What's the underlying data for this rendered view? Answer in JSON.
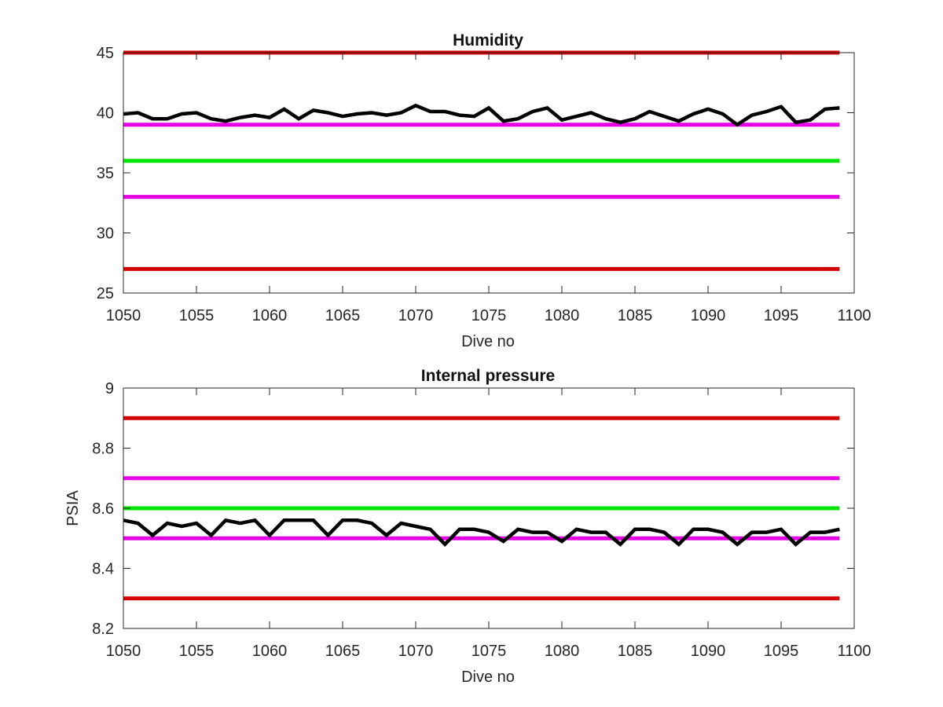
{
  "chart_data": [
    {
      "type": "line",
      "title": "Humidity",
      "xlabel": "Dive no",
      "ylabel": "",
      "xlim": [
        1050,
        1100
      ],
      "ylim": [
        25,
        45
      ],
      "xticks": [
        "1050",
        "1055",
        "1060",
        "1065",
        "1070",
        "1075",
        "1080",
        "1085",
        "1090",
        "1095",
        "1100"
      ],
      "yticks": [
        "25",
        "30",
        "35",
        "40",
        "45"
      ],
      "grid": false,
      "reference_lines": [
        {
          "y": 45,
          "color": "#d40000"
        },
        {
          "y": 39,
          "color": "#e600e6"
        },
        {
          "y": 36,
          "color": "#00e600"
        },
        {
          "y": 33,
          "color": "#e600e6"
        },
        {
          "y": 27,
          "color": "#d40000"
        }
      ],
      "series": [
        {
          "color": "#000000",
          "x": [
            1050,
            1051,
            1052,
            1053,
            1054,
            1055,
            1056,
            1057,
            1058,
            1059,
            1060,
            1061,
            1062,
            1063,
            1064,
            1065,
            1066,
            1067,
            1068,
            1069,
            1070,
            1071,
            1072,
            1073,
            1074,
            1075,
            1076,
            1077,
            1078,
            1079,
            1080,
            1081,
            1082,
            1083,
            1084,
            1085,
            1086,
            1087,
            1088,
            1089,
            1090,
            1091,
            1092,
            1093,
            1094,
            1095,
            1096,
            1097,
            1098,
            1099
          ],
          "values": [
            39.9,
            40.0,
            39.5,
            39.5,
            39.9,
            40.0,
            39.5,
            39.3,
            39.6,
            39.8,
            39.6,
            40.3,
            39.5,
            40.2,
            40.0,
            39.7,
            39.9,
            40.0,
            39.8,
            40.0,
            40.6,
            40.1,
            40.1,
            39.8,
            39.7,
            40.4,
            39.3,
            39.5,
            40.1,
            40.4,
            39.4,
            39.7,
            40.0,
            39.5,
            39.2,
            39.5,
            40.1,
            39.7,
            39.3,
            39.9,
            40.3,
            39.9,
            39.0,
            39.8,
            40.1,
            40.5,
            39.2,
            39.4,
            40.3,
            40.4
          ]
        }
      ]
    },
    {
      "type": "line",
      "title": "Internal pressure",
      "xlabel": "Dive no",
      "ylabel": "PSIA",
      "xlim": [
        1050,
        1100
      ],
      "ylim": [
        8.2,
        9.0
      ],
      "xticks": [
        "1050",
        "1055",
        "1060",
        "1065",
        "1070",
        "1075",
        "1080",
        "1085",
        "1090",
        "1095",
        "1100"
      ],
      "yticks": [
        "8.2",
        "8.4",
        "8.6",
        "8.8",
        "9"
      ],
      "grid": false,
      "reference_lines": [
        {
          "y": 8.9,
          "color": "#d40000"
        },
        {
          "y": 8.7,
          "color": "#e600e6"
        },
        {
          "y": 8.6,
          "color": "#00e600"
        },
        {
          "y": 8.5,
          "color": "#e600e6"
        },
        {
          "y": 8.3,
          "color": "#d40000"
        }
      ],
      "series": [
        {
          "color": "#000000",
          "x": [
            1050,
            1051,
            1052,
            1053,
            1054,
            1055,
            1056,
            1057,
            1058,
            1059,
            1060,
            1061,
            1062,
            1063,
            1064,
            1065,
            1066,
            1067,
            1068,
            1069,
            1070,
            1071,
            1072,
            1073,
            1074,
            1075,
            1076,
            1077,
            1078,
            1079,
            1080,
            1081,
            1082,
            1083,
            1084,
            1085,
            1086,
            1087,
            1088,
            1089,
            1090,
            1091,
            1092,
            1093,
            1094,
            1095,
            1096,
            1097,
            1098,
            1099
          ],
          "values": [
            8.56,
            8.55,
            8.51,
            8.55,
            8.54,
            8.55,
            8.51,
            8.56,
            8.55,
            8.56,
            8.51,
            8.56,
            8.56,
            8.56,
            8.51,
            8.56,
            8.56,
            8.55,
            8.51,
            8.55,
            8.54,
            8.53,
            8.48,
            8.53,
            8.53,
            8.52,
            8.49,
            8.53,
            8.52,
            8.52,
            8.49,
            8.53,
            8.52,
            8.52,
            8.48,
            8.53,
            8.53,
            8.52,
            8.48,
            8.53,
            8.53,
            8.52,
            8.48,
            8.52,
            8.52,
            8.53,
            8.48,
            8.52,
            8.52,
            8.53
          ]
        }
      ]
    }
  ]
}
